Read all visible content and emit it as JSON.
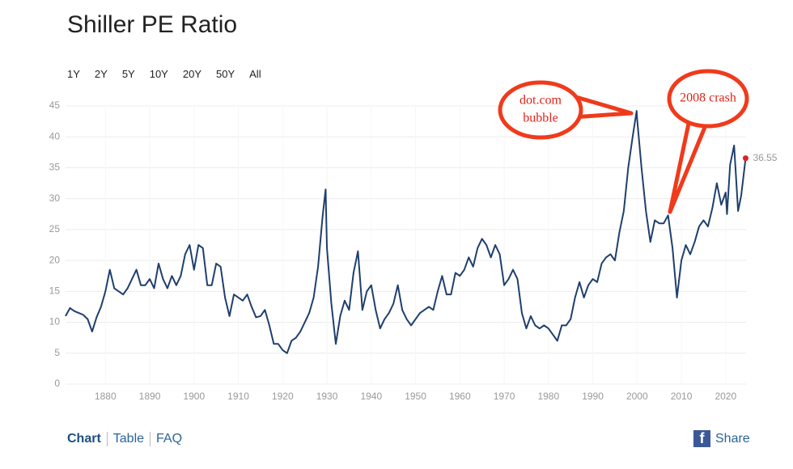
{
  "chart_data": {
    "type": "line",
    "title": "Shiller PE Ratio",
    "x": [
      1871,
      1872,
      1873,
      1874,
      1875,
      1876,
      1877,
      1878,
      1879,
      1880,
      1881,
      1882,
      1883,
      1884,
      1885,
      1886,
      1887,
      1888,
      1889,
      1890,
      1891,
      1892,
      1893,
      1894,
      1895,
      1896,
      1897,
      1898,
      1899,
      1900,
      1901,
      1902,
      1903,
      1904,
      1905,
      1906,
      1907,
      1908,
      1909,
      1910,
      1911,
      1912,
      1913,
      1914,
      1915,
      1916,
      1917,
      1918,
      1919,
      1920,
      1921,
      1922,
      1923,
      1924,
      1925,
      1926,
      1927,
      1928,
      1929,
      1929.7,
      1930,
      1931,
      1932,
      1933,
      1934,
      1935,
      1936,
      1937,
      1938,
      1939,
      1940,
      1941,
      1942,
      1943,
      1944,
      1945,
      1946,
      1947,
      1948,
      1949,
      1950,
      1951,
      1952,
      1953,
      1954,
      1955,
      1956,
      1957,
      1958,
      1959,
      1960,
      1961,
      1962,
      1963,
      1964,
      1965,
      1966,
      1967,
      1968,
      1969,
      1970,
      1971,
      1972,
      1973,
      1974,
      1975,
      1976,
      1977,
      1978,
      1979,
      1980,
      1981,
      1982,
      1983,
      1984,
      1985,
      1986,
      1987,
      1988,
      1989,
      1990,
      1991,
      1992,
      1993,
      1994,
      1995,
      1996,
      1997,
      1998,
      1999,
      1999.9,
      2000,
      2001,
      2002,
      2003,
      2004,
      2005,
      2006,
      2007,
      2008,
      2009,
      2010,
      2011,
      2012,
      2013,
      2014,
      2015,
      2016,
      2017,
      2018,
      2019,
      2020,
      2020.3,
      2021,
      2021.9,
      2022.8,
      2023.5,
      2024.5
    ],
    "series": [
      {
        "name": "Shiller PE Ratio",
        "color": "#1f3f6e",
        "values": [
          11,
          12.3,
          11.8,
          11.5,
          11.2,
          10.5,
          8.5,
          10.8,
          12.5,
          15,
          18.5,
          15.5,
          15,
          14.5,
          15.5,
          17,
          18.5,
          16,
          16,
          17,
          15.5,
          19.5,
          17,
          15.5,
          17.5,
          16,
          17.5,
          21,
          22.5,
          18.5,
          22.5,
          22,
          16,
          16,
          19.5,
          19,
          14,
          11,
          14.5,
          14,
          13.5,
          14.5,
          12.5,
          10.8,
          11,
          12,
          9.5,
          6.5,
          6.5,
          5.5,
          5,
          7,
          7.5,
          8.5,
          10,
          11.5,
          14,
          19,
          27,
          31.5,
          22,
          13,
          6.5,
          11,
          13.5,
          12,
          18,
          21.5,
          12,
          15,
          16,
          12,
          9,
          10.5,
          11.5,
          13,
          16,
          12,
          10.5,
          9.5,
          10.5,
          11.5,
          12,
          12.5,
          12,
          15,
          17.5,
          14.5,
          14.5,
          18,
          17.5,
          18.5,
          20.5,
          19,
          22,
          23.5,
          22.5,
          20.5,
          22.5,
          21,
          16,
          17,
          18.5,
          17,
          11.5,
          9,
          11,
          9.5,
          9,
          9.5,
          9,
          8,
          7,
          9.5,
          9.5,
          10.5,
          14,
          16.5,
          14,
          16,
          17,
          16.5,
          19.5,
          20.5,
          21,
          20,
          24.5,
          28,
          35,
          40,
          44.2,
          43,
          35,
          28,
          23,
          26.5,
          26,
          26,
          27.3,
          22,
          14,
          20,
          22.5,
          21,
          23,
          25.5,
          26.5,
          25.5,
          28.5,
          32.5,
          29,
          31,
          27.5,
          35.5,
          38.6,
          28,
          30.5,
          36.55
        ]
      }
    ],
    "xlim": [
      1871,
      2024.6
    ],
    "ylim": [
      0,
      45
    ],
    "xticks": [
      1880,
      1890,
      1900,
      1910,
      1920,
      1930,
      1940,
      1950,
      1960,
      1970,
      1980,
      1990,
      2000,
      2010,
      2020
    ],
    "yticks": [
      0,
      5,
      10,
      15,
      20,
      25,
      30,
      35,
      40,
      45
    ],
    "grid": true,
    "annotations": [
      [
        "dot.com",
        "bubble"
      ],
      [
        "2008 crash"
      ]
    ]
  },
  "range_buttons": [
    "1Y",
    "2Y",
    "5Y",
    "10Y",
    "20Y",
    "50Y",
    "All"
  ],
  "tabs": [
    "Chart",
    "Table",
    "FAQ"
  ],
  "share": "Share"
}
